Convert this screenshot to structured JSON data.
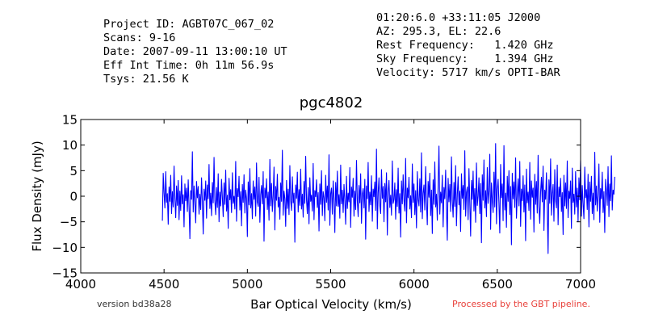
{
  "header_left": [
    "Project ID: AGBT07C_067_02",
    "Scans: 9-16",
    "Date: 2007-09-11 13:00:10 UT",
    "Eff Int Time: 0h 11m 56.9s",
    "Tsys: 21.56 K"
  ],
  "header_right": [
    "01:20:6.0 +33:11:05 J2000",
    "AZ: 295.3, EL: 22.6",
    "Rest Frequency:   1.420 GHz",
    "Sky Frequency:    1.394 GHz",
    "Velocity: 5717 km/s OPTI-BAR"
  ],
  "footer": {
    "version": "version bd38a28",
    "pipeline": "Processed by the GBT pipeline.",
    "pipeline_color": "#e8403a"
  },
  "chart_data": {
    "type": "line",
    "title": "pgc4802",
    "xlabel": "Bar Optical Velocity (km/s)",
    "ylabel": "Flux Density (mJy)",
    "xlim": [
      4000,
      7000
    ],
    "ylim": [
      -15,
      15
    ],
    "xticks": [
      4000,
      4500,
      5000,
      5500,
      6000,
      6500,
      7000
    ],
    "xtick_labels": [
      "4000",
      "4500",
      "5000",
      "5500",
      "6000",
      "6500",
      "7000"
    ],
    "yticks": [
      -15,
      -10,
      -5,
      0,
      5,
      10,
      15
    ],
    "ytick_labels": [
      "−15",
      "−10",
      "−5",
      "0",
      "5",
      "10",
      "15"
    ],
    "grid": false,
    "line_color": "#0000ff",
    "series": [
      {
        "x_start": 4490,
        "x_step": 5,
        "values": [
          -4.8,
          4.5,
          0.7,
          -2.3,
          4.8,
          -1.2,
          0.5,
          -5.5,
          1.8,
          -1.0,
          4.1,
          -3.4,
          0.9,
          -2.1,
          5.9,
          -0.4,
          -4.2,
          2.0,
          -1.8,
          3.1,
          -4.6,
          1.0,
          -2.8,
          4.0,
          -1.5,
          0.3,
          -6.0,
          2.4,
          -0.9,
          1.6,
          -3.0,
          3.2,
          -2.0,
          -8.3,
          1.1,
          -0.6,
          8.7,
          -3.1,
          2.0,
          -1.1,
          -5.2,
          2.9,
          -0.3,
          1.9,
          -3.5,
          0.4,
          -2.6,
          3.6,
          -1.0,
          -7.4,
          1.4,
          -0.8,
          3.0,
          -4.3,
          2.2,
          -0.5,
          6.2,
          -2.4,
          0.6,
          -3.8,
          2.7,
          -1.3,
          7.6,
          -0.9,
          -3.6,
          1.7,
          -2.2,
          4.4,
          -5.0,
          0.8,
          -1.9,
          3.3,
          -0.2,
          -4.0,
          2.6,
          -1.6,
          5.1,
          -2.9,
          0.2,
          -6.3,
          3.5,
          -0.7,
          1.3,
          -3.2,
          4.6,
          -1.4,
          0.0,
          -2.5,
          6.8,
          -4.9,
          1.5,
          -0.1,
          3.9,
          -2.7,
          0.9,
          -5.8,
          2.3,
          -1.2,
          4.2,
          -3.3,
          1.2,
          -0.4,
          -7.9,
          2.8,
          -1.7,
          5.4,
          -2.3,
          0.5,
          -4.4,
          3.0,
          -0.6,
          1.8,
          -3.9,
          6.5,
          -1.1,
          -2.0,
          3.7,
          -5.1,
          0.3,
          2.1,
          -1.5,
          4.8,
          -8.8,
          1.6,
          -0.3,
          3.4,
          -2.6,
          0.8,
          -4.7,
          7.2,
          -1.9,
          2.5,
          -3.0,
          0.1,
          5.7,
          -6.6,
          1.9,
          -0.8,
          4.3,
          -2.1,
          -0.2,
          -4.5,
          2.6,
          -1.0,
          9.0,
          -3.7,
          1.0,
          -0.5,
          -5.9,
          3.1,
          -2.4,
          1.4,
          -3.6,
          6.0,
          -0.9,
          -2.8,
          3.8,
          -1.3,
          0.6,
          -9.0,
          2.2,
          -0.4,
          4.7,
          -3.1,
          1.3,
          -1.8,
          5.3,
          -2.5,
          0.4,
          -4.1,
          2.9,
          -1.4,
          7.8,
          -0.7,
          -3.4,
          1.7,
          -5.4,
          3.6,
          -1.0,
          0.2,
          -2.9,
          6.4,
          -4.6,
          1.1,
          -0.1,
          3.2,
          -2.2,
          0.7,
          -6.8,
          2.4,
          -1.6,
          5.0,
          -3.8,
          0.9,
          -0.3,
          -4.8,
          4.1,
          -1.2,
          2.0,
          -2.7,
          8.1,
          -5.7,
          0.5,
          1.6,
          -3.5,
          3.0,
          -0.6,
          -7.1,
          2.7,
          -1.9,
          4.9,
          -2.0,
          0.3,
          -4.3,
          6.1,
          -1.5,
          1.2,
          -3.2,
          2.3,
          -0.8,
          -5.5,
          3.9,
          -2.4,
          0.6,
          -1.1,
          5.6,
          -6.1,
          1.8,
          -0.2,
          3.5,
          -3.9,
          1.0,
          -2.6,
          7.0,
          -0.9,
          -4.0,
          2.1,
          -1.3,
          4.4,
          -5.3,
          0.4,
          1.5,
          -2.3,
          3.3,
          -8.4,
          2.0,
          -0.5,
          6.6,
          -3.0,
          0.8,
          -1.7,
          4.0,
          -4.9,
          1.4,
          -0.1,
          2.8,
          -2.8,
          9.2,
          -6.4,
          0.7,
          3.6,
          -1.8,
          -3.4,
          5.2,
          -0.4,
          1.9,
          -5.0,
          2.5,
          -1.1,
          4.6,
          -7.6,
          0.9,
          3.1,
          -2.2,
          0.2,
          -3.7,
          6.9,
          -1.4,
          -0.6,
          2.6,
          -4.5,
          1.3,
          -2.0,
          5.5,
          -3.3,
          0.5,
          -8.0,
          3.0,
          -1.5,
          4.2,
          -0.8,
          -2.9,
          7.4,
          -5.2,
          1.6,
          -0.3,
          3.7,
          -2.5,
          0.1,
          -4.2,
          6.3,
          -1.2,
          2.4,
          -3.6,
          1.1,
          -6.2,
          4.8,
          -0.7,
          -1.9,
          3.4,
          -3.1,
          8.5,
          -4.4,
          0.6,
          2.2,
          -2.7,
          5.8,
          -1.0,
          -5.6,
          2.9,
          -0.2,
          4.5,
          -3.8,
          1.2,
          -7.3,
          3.2,
          -1.6,
          6.7,
          -2.1,
          0.4,
          -4.7,
          2.0,
          9.8,
          -3.5,
          0.8,
          -1.3,
          4.1,
          -6.0,
          1.7,
          -0.5,
          5.1,
          -2.4,
          -8.6,
          3.5,
          -1.1,
          2.3,
          -3.0,
          7.7,
          -0.9,
          -4.1,
          2.7,
          -2.0,
          6.0,
          -5.8,
          0.3,
          3.8,
          -1.7,
          1.0,
          -6.9,
          4.4,
          -0.4,
          2.1,
          -2.6,
          8.9,
          -3.9,
          0.7,
          1.8,
          -4.6,
          5.4,
          -1.2,
          -7.8,
          3.1,
          -0.6,
          4.9,
          -2.9,
          1.5,
          -5.1,
          6.5,
          -1.8,
          0.0,
          3.6,
          -3.4,
          2.5,
          -9.1,
          4.2,
          -0.8,
          7.1,
          -2.3,
          1.1,
          -4.0,
          5.6,
          -1.4,
          0.9,
          8.2,
          -6.5,
          2.6,
          -0.7,
          -3.2,
          4.7,
          -2.1,
          10.3,
          -5.4,
          1.3,
          3.3,
          -1.5,
          -7.2,
          6.2,
          -0.3,
          2.4,
          -4.8,
          9.9,
          -2.7,
          0.6,
          -6.1,
          3.9,
          -1.0,
          5.0,
          -3.6,
          1.9,
          -9.5,
          4.5,
          -0.5,
          2.8,
          -2.2,
          7.5,
          -4.3,
          0.2,
          3.4,
          -1.9,
          6.8,
          -5.9,
          1.4,
          -0.9,
          4.0,
          -3.1,
          2.2,
          -8.7,
          5.3,
          -1.3,
          0.8,
          -2.8,
          6.6,
          -4.5,
          3.0,
          -0.2,
          1.6,
          -7.0,
          4.3,
          -1.6,
          2.9,
          -3.3,
          8.0,
          -2.0,
          -5.3,
          0.9,
          3.7,
          -1.1,
          5.9,
          -6.7,
          1.2,
          -0.6,
          4.6,
          -2.5,
          -11.2,
          3.2,
          -1.4,
          7.3,
          -3.7,
          0.5,
          2.3,
          -4.9,
          5.2,
          -0.8,
          -2.3,
          6.1,
          -5.6,
          1.8,
          -0.1,
          3.5,
          -3.0,
          0.7,
          -7.5,
          4.1,
          -1.9,
          2.6,
          -2.4,
          6.9,
          -4.2,
          1.0,
          -0.4,
          3.0,
          -6.3,
          5.5,
          -1.2,
          0.4,
          -3.5,
          4.8,
          -2.1,
          1.6,
          -5.0,
          3.6,
          -0.7,
          7.0,
          -3.9,
          2.1,
          -1.5,
          -4.4,
          5.7,
          -0.3,
          1.3,
          -2.6,
          4.3,
          -6.0,
          2.8,
          -1.0,
          3.9,
          -3.4,
          0.6,
          -4.6,
          8.6,
          -1.7,
          2.0,
          -2.9,
          0.3,
          6.3,
          -5.1,
          1.5,
          -0.5,
          4.7,
          -3.2,
          0.9,
          -7.1,
          3.3,
          1.1,
          -1.8,
          5.8,
          -4.0,
          2.4,
          -0.9,
          7.9,
          -2.7,
          1.2,
          0.4,
          3.8
        ]
      }
    ]
  }
}
